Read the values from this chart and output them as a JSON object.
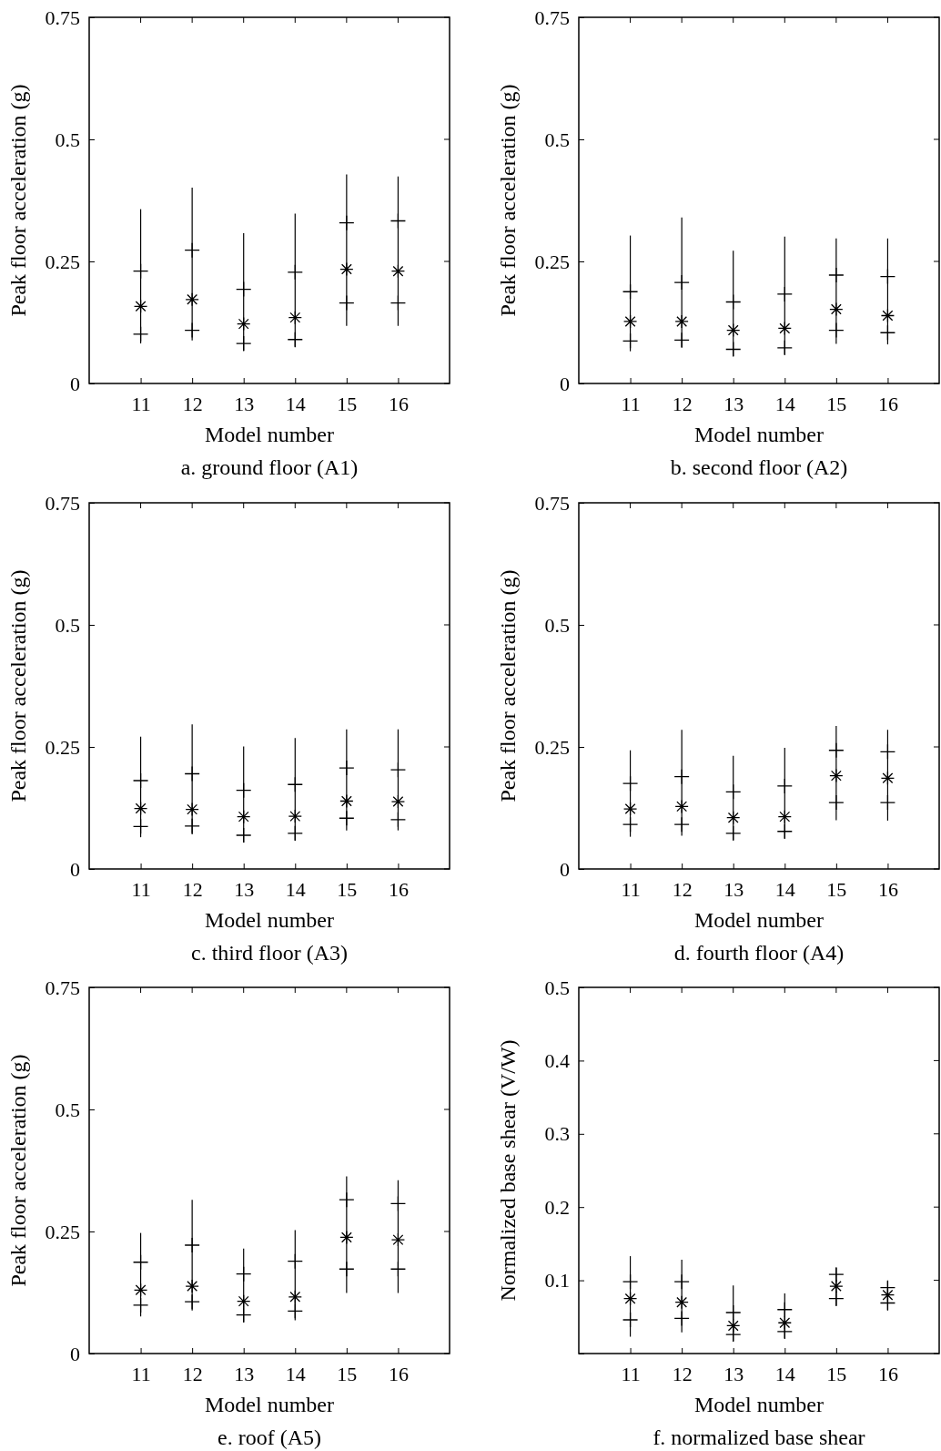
{
  "chart_data": [
    {
      "type": "box",
      "title": "a. ground floor (A1)",
      "xlabel": "Model number",
      "ylabel": "Peak floor acceleration (g)",
      "categories": [
        "11",
        "12",
        "13",
        "14",
        "15",
        "16"
      ],
      "ylim": [
        0,
        0.75
      ],
      "yticks": [
        0,
        0.25,
        0.5,
        0.75
      ],
      "grid": false,
      "color": "#000000",
      "boxes": [
        {
          "low": 0.082,
          "q1": 0.101,
          "median": 0.158,
          "q3": 0.23,
          "high": 0.357
        },
        {
          "low": 0.088,
          "q1": 0.109,
          "median": 0.172,
          "q3": 0.273,
          "high": 0.401
        },
        {
          "low": 0.066,
          "q1": 0.082,
          "median": 0.122,
          "q3": 0.193,
          "high": 0.308
        },
        {
          "low": 0.074,
          "q1": 0.09,
          "median": 0.135,
          "q3": 0.228,
          "high": 0.348
        },
        {
          "low": 0.118,
          "q1": 0.165,
          "median": 0.234,
          "q3": 0.329,
          "high": 0.428
        },
        {
          "low": 0.118,
          "q1": 0.165,
          "median": 0.23,
          "q3": 0.333,
          "high": 0.424
        }
      ]
    },
    {
      "type": "box",
      "title": "b. second floor (A2)",
      "xlabel": "Model number",
      "ylabel": "Peak floor acceleration (g)",
      "categories": [
        "11",
        "12",
        "13",
        "14",
        "15",
        "16"
      ],
      "ylim": [
        0,
        0.75
      ],
      "yticks": [
        0,
        0.25,
        0.5,
        0.75
      ],
      "grid": false,
      "color": "#000000",
      "boxes": [
        {
          "low": 0.066,
          "q1": 0.087,
          "median": 0.127,
          "q3": 0.188,
          "high": 0.303
        },
        {
          "low": 0.073,
          "q1": 0.089,
          "median": 0.127,
          "q3": 0.207,
          "high": 0.34
        },
        {
          "low": 0.056,
          "q1": 0.07,
          "median": 0.109,
          "q3": 0.167,
          "high": 0.272
        },
        {
          "low": 0.059,
          "q1": 0.073,
          "median": 0.113,
          "q3": 0.183,
          "high": 0.301
        },
        {
          "low": 0.081,
          "q1": 0.109,
          "median": 0.152,
          "q3": 0.222,
          "high": 0.297
        },
        {
          "low": 0.08,
          "q1": 0.104,
          "median": 0.139,
          "q3": 0.219,
          "high": 0.297
        }
      ]
    },
    {
      "type": "box",
      "title": "c. third floor (A3)",
      "xlabel": "Model number",
      "ylabel": "Peak floor acceleration (g)",
      "categories": [
        "11",
        "12",
        "13",
        "14",
        "15",
        "16"
      ],
      "ylim": [
        0,
        0.75
      ],
      "yticks": [
        0,
        0.25,
        0.5,
        0.75
      ],
      "grid": false,
      "color": "#000000",
      "boxes": [
        {
          "low": 0.065,
          "q1": 0.087,
          "median": 0.124,
          "q3": 0.181,
          "high": 0.271
        },
        {
          "low": 0.071,
          "q1": 0.088,
          "median": 0.122,
          "q3": 0.195,
          "high": 0.296
        },
        {
          "low": 0.054,
          "q1": 0.069,
          "median": 0.107,
          "q3": 0.161,
          "high": 0.251
        },
        {
          "low": 0.058,
          "q1": 0.073,
          "median": 0.108,
          "q3": 0.173,
          "high": 0.268
        },
        {
          "low": 0.079,
          "q1": 0.104,
          "median": 0.139,
          "q3": 0.207,
          "high": 0.286
        },
        {
          "low": 0.079,
          "q1": 0.101,
          "median": 0.138,
          "q3": 0.203,
          "high": 0.286
        }
      ]
    },
    {
      "type": "box",
      "title": "d. fourth floor (A4)",
      "xlabel": "Model number",
      "ylabel": "Peak floor acceleration (g)",
      "categories": [
        "11",
        "12",
        "13",
        "14",
        "15",
        "16"
      ],
      "ylim": [
        0,
        0.75
      ],
      "yticks": [
        0,
        0.25,
        0.5,
        0.75
      ],
      "grid": false,
      "color": "#000000",
      "boxes": [
        {
          "low": 0.066,
          "q1": 0.091,
          "median": 0.123,
          "q3": 0.175,
          "high": 0.243
        },
        {
          "low": 0.068,
          "q1": 0.091,
          "median": 0.128,
          "q3": 0.189,
          "high": 0.285
        },
        {
          "low": 0.059,
          "q1": 0.073,
          "median": 0.105,
          "q3": 0.158,
          "high": 0.232
        },
        {
          "low": 0.062,
          "q1": 0.077,
          "median": 0.107,
          "q3": 0.17,
          "high": 0.248
        },
        {
          "low": 0.1,
          "q1": 0.136,
          "median": 0.191,
          "q3": 0.243,
          "high": 0.293
        },
        {
          "low": 0.099,
          "q1": 0.136,
          "median": 0.186,
          "q3": 0.24,
          "high": 0.285
        }
      ]
    },
    {
      "type": "box",
      "title": "e. roof (A5)",
      "xlabel": "Model number",
      "ylabel": "Peak floor acceleration (g)",
      "categories": [
        "11",
        "12",
        "13",
        "14",
        "15",
        "16"
      ],
      "ylim": [
        0,
        0.75
      ],
      "yticks": [
        0,
        0.25,
        0.5,
        0.75
      ],
      "grid": false,
      "color": "#000000",
      "boxes": [
        {
          "low": 0.076,
          "q1": 0.099,
          "median": 0.13,
          "q3": 0.187,
          "high": 0.247
        },
        {
          "low": 0.088,
          "q1": 0.106,
          "median": 0.138,
          "q3": 0.222,
          "high": 0.315
        },
        {
          "low": 0.064,
          "q1": 0.079,
          "median": 0.107,
          "q3": 0.163,
          "high": 0.215
        },
        {
          "low": 0.068,
          "q1": 0.087,
          "median": 0.116,
          "q3": 0.189,
          "high": 0.253
        },
        {
          "low": 0.124,
          "q1": 0.173,
          "median": 0.238,
          "q3": 0.315,
          "high": 0.363
        },
        {
          "low": 0.124,
          "q1": 0.173,
          "median": 0.233,
          "q3": 0.307,
          "high": 0.355
        }
      ]
    },
    {
      "type": "box",
      "title": "f. normalized base shear",
      "xlabel": "Model number",
      "ylabel": "Normalized base shear (V/W)",
      "categories": [
        "11",
        "12",
        "13",
        "14",
        "15",
        "16"
      ],
      "ylim": [
        0,
        0.5
      ],
      "yticks": [
        {
          "value": 0,
          "label": null
        },
        0.1,
        0.2,
        0.3,
        0.4,
        0.5
      ],
      "grid": false,
      "color": "#000000",
      "boxes": [
        {
          "low": 0.023,
          "q1": 0.046,
          "median": 0.075,
          "q3": 0.098,
          "high": 0.133
        },
        {
          "low": 0.029,
          "q1": 0.048,
          "median": 0.07,
          "q3": 0.098,
          "high": 0.128
        },
        {
          "low": 0.017,
          "q1": 0.026,
          "median": 0.038,
          "q3": 0.056,
          "high": 0.093
        },
        {
          "low": 0.021,
          "q1": 0.03,
          "median": 0.042,
          "q3": 0.06,
          "high": 0.082
        },
        {
          "low": 0.065,
          "q1": 0.075,
          "median": 0.092,
          "q3": 0.108,
          "high": 0.117
        },
        {
          "low": 0.059,
          "q1": 0.069,
          "median": 0.08,
          "q3": 0.09,
          "high": 0.099
        }
      ]
    }
  ]
}
